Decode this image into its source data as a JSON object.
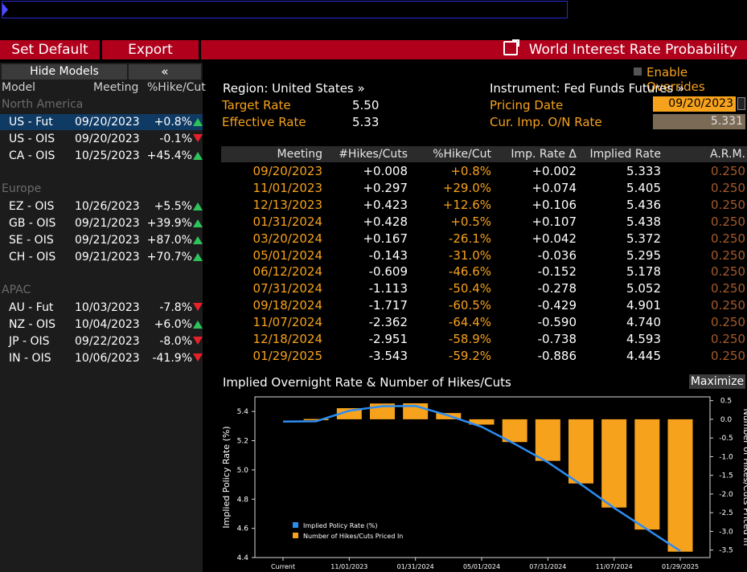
{
  "command_line": {
    "value": ""
  },
  "toolbar": {
    "set_default_label": "Set Default",
    "export_label": "Export"
  },
  "window": {
    "title": "World Interest Rate Probability",
    "external_icon": "external-link-icon"
  },
  "models_panel": {
    "hide_label": "Hide Models",
    "collapse_label": "«",
    "headers": {
      "model": "Model",
      "meeting": "Meeting",
      "pct": "%Hike/Cut"
    },
    "groups": [
      {
        "region": "North America",
        "rows": [
          {
            "model": "US - Fut",
            "meeting": "09/20/2023",
            "pct": "+0.8%",
            "dir": "up",
            "selected": true
          },
          {
            "model": "US - OIS",
            "meeting": "09/20/2023",
            "pct": "-0.1%",
            "dir": "down"
          },
          {
            "model": "CA - OIS",
            "meeting": "10/25/2023",
            "pct": "+45.4%",
            "dir": "up"
          }
        ]
      },
      {
        "region": "Europe",
        "rows": [
          {
            "model": "EZ - OIS",
            "meeting": "10/26/2023",
            "pct": "+5.5%",
            "dir": "up"
          },
          {
            "model": "GB - OIS",
            "meeting": "09/21/2023",
            "pct": "+39.9%",
            "dir": "up"
          },
          {
            "model": "SE - OIS",
            "meeting": "09/21/2023",
            "pct": "+87.0%",
            "dir": "up"
          },
          {
            "model": "CH - OIS",
            "meeting": "09/21/2023",
            "pct": "+70.7%",
            "dir": "up"
          }
        ]
      },
      {
        "region": "APAC",
        "rows": [
          {
            "model": "AU - Fut",
            "meeting": "10/03/2023",
            "pct": "-7.8%",
            "dir": "down"
          },
          {
            "model": "NZ - OIS",
            "meeting": "10/04/2023",
            "pct": "+6.0%",
            "dir": "up"
          },
          {
            "model": "JP - OIS",
            "meeting": "09/22/2023",
            "pct": "-8.0%",
            "dir": "down"
          },
          {
            "model": "IN - OIS",
            "meeting": "10/06/2023",
            "pct": "-41.9%",
            "dir": "down"
          }
        ]
      }
    ]
  },
  "overrides": {
    "label": "Enable Overrides"
  },
  "info": {
    "region_label": "Region: United States »",
    "target_rate_label": "Target Rate",
    "target_rate": "5.50",
    "effective_rate_label": "Effective Rate",
    "effective_rate": "5.33",
    "instrument_label": "Instrument: Fed Funds Futures »",
    "pricing_date_label": "Pricing Date",
    "pricing_date": "09/20/2023",
    "on_rate_label": "Cur. Imp. O/N Rate",
    "on_rate": "5.331"
  },
  "table": {
    "headers": [
      "Meeting",
      "#Hikes/Cuts",
      "%Hike/Cut",
      "Imp. Rate Δ",
      "Implied Rate",
      "A.R.M."
    ],
    "rows": [
      [
        "09/20/2023",
        "+0.008",
        "+0.8%",
        "+0.002",
        "5.333",
        "0.250"
      ],
      [
        "11/01/2023",
        "+0.297",
        "+29.0%",
        "+0.074",
        "5.405",
        "0.250"
      ],
      [
        "12/13/2023",
        "+0.423",
        "+12.6%",
        "+0.106",
        "5.436",
        "0.250"
      ],
      [
        "01/31/2024",
        "+0.428",
        "+0.5%",
        "+0.107",
        "5.438",
        "0.250"
      ],
      [
        "03/20/2024",
        "+0.167",
        "-26.1%",
        "+0.042",
        "5.372",
        "0.250"
      ],
      [
        "05/01/2024",
        "-0.143",
        "-31.0%",
        "-0.036",
        "5.295",
        "0.250"
      ],
      [
        "06/12/2024",
        "-0.609",
        "-46.6%",
        "-0.152",
        "5.178",
        "0.250"
      ],
      [
        "07/31/2024",
        "-1.113",
        "-50.4%",
        "-0.278",
        "5.052",
        "0.250"
      ],
      [
        "09/18/2024",
        "-1.717",
        "-60.5%",
        "-0.429",
        "4.901",
        "0.250"
      ],
      [
        "11/07/2024",
        "-2.362",
        "-64.4%",
        "-0.590",
        "4.740",
        "0.250"
      ],
      [
        "12/18/2024",
        "-2.951",
        "-58.9%",
        "-0.738",
        "4.593",
        "0.250"
      ],
      [
        "01/29/2025",
        "-3.543",
        "-59.2%",
        "-0.886",
        "4.445",
        "0.250"
      ]
    ]
  },
  "chart_panel": {
    "title": "Implied Overnight Rate & Number of Hikes/Cuts",
    "maximize_label": "Maximize"
  },
  "chart_data": {
    "type": "bar",
    "xlabel": "",
    "ylabel": "Implied Policy Rate (%)",
    "y2label": "Number of Hikes/Cuts Priced In",
    "ylim": [
      4.4,
      5.5
    ],
    "y2lim": [
      -3.7,
      0.6
    ],
    "yticks": [
      "5.4",
      "5.2",
      "5.0",
      "4.8",
      "4.6",
      "4.4"
    ],
    "y2ticks": [
      "0.5",
      "0.0",
      "-0.5",
      "-1.0",
      "-1.5",
      "-2.0",
      "-2.5",
      "-3.0",
      "-3.5"
    ],
    "xticks": [
      "Current",
      "11/01/2023",
      "01/31/2024",
      "05/01/2024",
      "07/31/2024",
      "11/07/2024",
      "01/29/2025"
    ],
    "categories": [
      "Current",
      "09/20/2023",
      "11/01/2023",
      "12/13/2023",
      "01/31/2024",
      "03/20/2024",
      "05/01/2024",
      "06/12/2024",
      "07/31/2024",
      "09/18/2024",
      "11/07/2024",
      "12/18/2024",
      "01/29/2025"
    ],
    "series": [
      {
        "name": "Implied Policy Rate (%)",
        "type": "line",
        "color": "#2d8cf0",
        "values": [
          5.331,
          5.333,
          5.405,
          5.436,
          5.438,
          5.372,
          5.295,
          5.178,
          5.052,
          4.901,
          4.74,
          4.593,
          4.445
        ]
      },
      {
        "name": "Number of Hikes/Cuts Priced In",
        "type": "bar",
        "color": "#f7a21c",
        "values": [
          null,
          0.008,
          0.297,
          0.423,
          0.428,
          0.167,
          -0.143,
          -0.609,
          -1.113,
          -1.717,
          -2.362,
          -2.951,
          -3.543
        ]
      }
    ],
    "legend": "bottom-left",
    "grid": false
  }
}
